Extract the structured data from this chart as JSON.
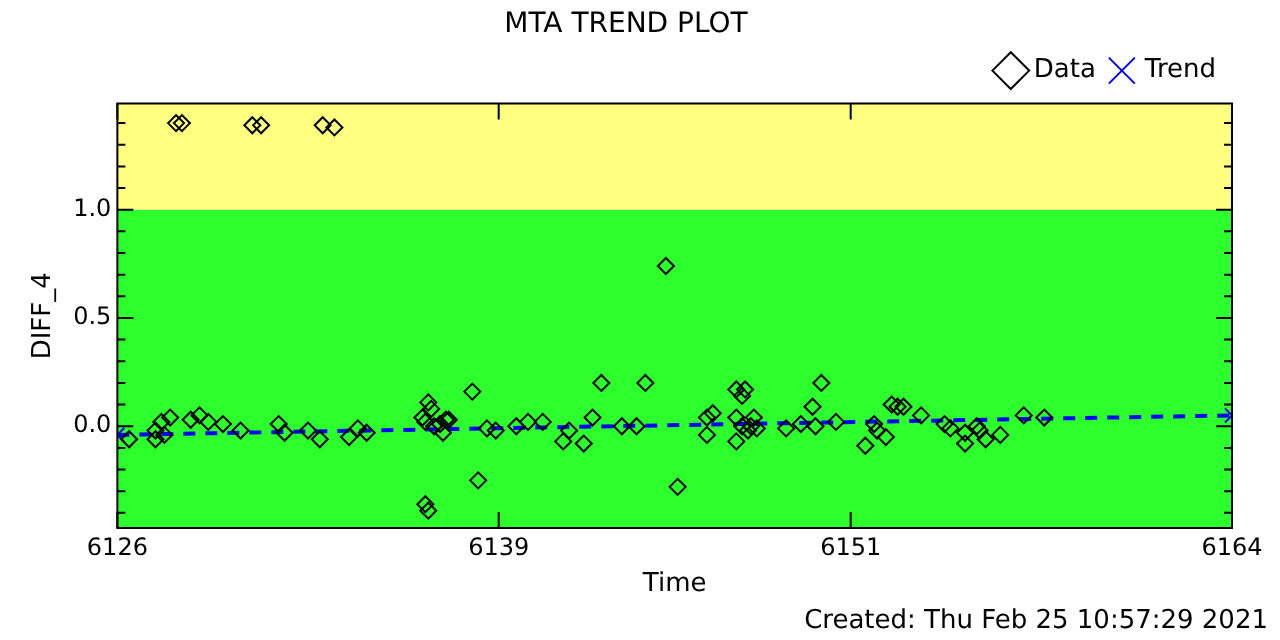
{
  "chart_data": {
    "type": "scatter",
    "title": "MTA TREND PLOT",
    "xlabel": "Time",
    "ylabel": "DIFF_4",
    "annotations": [
      "Created: Thu Feb 25 10:57:29 2021"
    ],
    "xlim": [
      6126,
      6164
    ],
    "xticks": [
      6126,
      6139,
      6151,
      6164
    ],
    "ylim": [
      -0.47,
      1.49
    ],
    "yticks": [
      {
        "value": -0.4,
        "label": null
      },
      {
        "value": -0.3,
        "label": null
      },
      {
        "value": -0.2,
        "label": null
      },
      {
        "value": -0.1,
        "label": null
      },
      {
        "value": 0,
        "label": "0.0"
      },
      {
        "value": 0.1,
        "label": null
      },
      {
        "value": 0.2,
        "label": null
      },
      {
        "value": 0.3,
        "label": null
      },
      {
        "value": 0.4,
        "label": null
      },
      {
        "value": 0.5,
        "label": "0.5"
      },
      {
        "value": 0.6,
        "label": null
      },
      {
        "value": 0.7,
        "label": null
      },
      {
        "value": 0.8,
        "label": null
      },
      {
        "value": 0.9,
        "label": null
      },
      {
        "value": 1.0,
        "label": "1.0"
      },
      {
        "value": 1.1,
        "label": null
      },
      {
        "value": 1.2,
        "label": null
      },
      {
        "value": 1.3,
        "label": null
      },
      {
        "value": 1.4,
        "label": null
      }
    ],
    "grid": false,
    "legend": "top right",
    "bands": [
      {
        "axis": "y",
        "from": -0.47,
        "to": 1.0,
        "color": "#2cff2c"
      },
      {
        "axis": "y",
        "from": 1.0,
        "to": 1.49,
        "color": "#ffff80"
      }
    ],
    "series": [
      {
        "name": "Data",
        "type": "scatter",
        "color": "#000000",
        "marker": "diamond",
        "x": [
          6128.0,
          6128.2,
          6130.6,
          6130.9,
          6133.0,
          6133.4,
          6126.4,
          6127.3,
          6127.5,
          6127.8,
          6128.5,
          6128.8,
          6129.1,
          6127.3,
          6127.6,
          6130.2,
          6129.6,
          6131.5,
          6131.7,
          6132.5,
          6132.9,
          6133.9,
          6134.2,
          6134.5,
          6136.4,
          6136.6,
          6136.5,
          6136.8,
          6137.0,
          6137.2,
          6136.5,
          6136.6,
          6136.7,
          6137.1,
          6137.3,
          6138.1,
          6138.3,
          6138.6,
          6138.9,
          6139.6,
          6140.0,
          6140.5,
          6141.2,
          6141.4,
          6141.9,
          6142.2,
          6142.5,
          6144.0,
          6143.7,
          6143.2,
          6144.7,
          6145.1,
          6146.1,
          6146.1,
          6146.3,
          6147.1,
          6147.3,
          6147.4,
          6147.1,
          6147.3,
          6147.6,
          6147.1,
          6147.5,
          6147.7,
          6147.8,
          6148.8,
          6149.3,
          6149.7,
          6150.0,
          6149.8,
          6150.5,
          6151.5,
          6151.8,
          6152.6,
          6152.4,
          6152.8,
          6151.9,
          6152.2,
          6153.4,
          6154.2,
          6154.4,
          6154.9,
          6155.3,
          6154.9,
          6155.4,
          6155.6,
          6156.1,
          6156.9,
          6157.6
        ],
        "values": [
          1.4,
          1.4,
          1.39,
          1.39,
          1.39,
          1.38,
          -0.06,
          -0.02,
          0.02,
          0.04,
          0.03,
          0.05,
          0.02,
          -0.06,
          -0.04,
          -0.02,
          0.01,
          0.01,
          -0.03,
          -0.02,
          -0.06,
          -0.05,
          -0.01,
          -0.03,
          0.04,
          0.11,
          0.02,
          0,
          0.01,
          0.03,
          -0.36,
          -0.39,
          0.08,
          -0.03,
          0.03,
          0.16,
          -0.25,
          -0.01,
          -0.02,
          0,
          0.02,
          0.02,
          -0.07,
          -0.02,
          -0.08,
          0.04,
          0.2,
          0.2,
          0,
          0,
          0.74,
          -0.28,
          0.04,
          -0.04,
          0.06,
          0.17,
          0.14,
          0.17,
          0.04,
          0,
          0,
          -0.07,
          -0.02,
          0.04,
          -0.01,
          -0.01,
          0.01,
          0.09,
          0.2,
          0,
          0.02,
          -0.09,
          0.01,
          0.09,
          0.1,
          0.09,
          -0.02,
          -0.05,
          0.05,
          0.01,
          -0.01,
          -0.03,
          0,
          -0.08,
          -0.02,
          -0.06,
          -0.04,
          0.05,
          0.04
        ]
      },
      {
        "name": "Trend",
        "type": "line",
        "color": "#0000ff",
        "marker": "cross",
        "line_style": "dashed",
        "x": [
          6126,
          6164
        ],
        "values": [
          -0.04,
          0.05
        ]
      }
    ]
  }
}
